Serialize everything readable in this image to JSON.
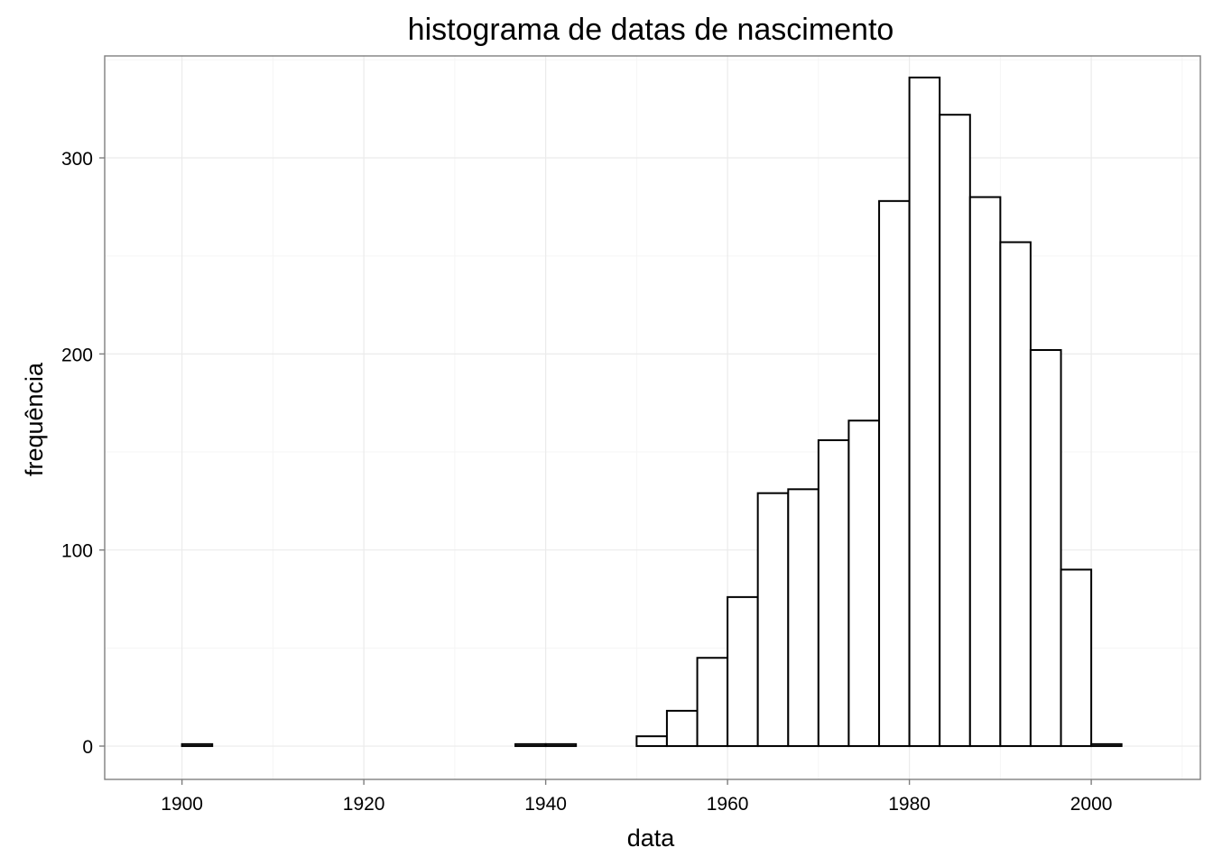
{
  "chart_data": {
    "type": "bar",
    "subtype": "histogram",
    "title": "histograma de datas de nascimento",
    "xlabel": "data",
    "ylabel": "frequência",
    "xlim": [
      1891.5,
      2012
    ],
    "ylim": [
      -17,
      352
    ],
    "x_ticks": [
      1900,
      1920,
      1940,
      1960,
      1980,
      2000
    ],
    "x_tick_labels": [
      "1900",
      "1920",
      "1940",
      "1960",
      "1980",
      "2000"
    ],
    "y_ticks": [
      0,
      100,
      200,
      300
    ],
    "y_tick_labels": [
      "0",
      "100",
      "200",
      "300"
    ],
    "grid": true,
    "bin_width": 3.33,
    "bins": [
      {
        "x0": 1896.67,
        "x1": 1900.0,
        "count": 0
      },
      {
        "x0": 1900.0,
        "x1": 1903.33,
        "count": 1
      },
      {
        "x0": 1903.33,
        "x1": 1906.67,
        "count": 0
      },
      {
        "x0": 1906.67,
        "x1": 1910.0,
        "count": 0
      },
      {
        "x0": 1910.0,
        "x1": 1913.33,
        "count": 0
      },
      {
        "x0": 1913.33,
        "x1": 1916.67,
        "count": 0
      },
      {
        "x0": 1916.67,
        "x1": 1920.0,
        "count": 0
      },
      {
        "x0": 1920.0,
        "x1": 1923.33,
        "count": 0
      },
      {
        "x0": 1923.33,
        "x1": 1926.67,
        "count": 0
      },
      {
        "x0": 1926.67,
        "x1": 1930.0,
        "count": 0
      },
      {
        "x0": 1930.0,
        "x1": 1933.33,
        "count": 0
      },
      {
        "x0": 1933.33,
        "x1": 1936.67,
        "count": 0
      },
      {
        "x0": 1936.67,
        "x1": 1940.0,
        "count": 1
      },
      {
        "x0": 1940.0,
        "x1": 1943.33,
        "count": 1
      },
      {
        "x0": 1943.33,
        "x1": 1946.67,
        "count": 0
      },
      {
        "x0": 1946.67,
        "x1": 1950.0,
        "count": 0
      },
      {
        "x0": 1950.0,
        "x1": 1953.33,
        "count": 5
      },
      {
        "x0": 1953.33,
        "x1": 1956.67,
        "count": 18
      },
      {
        "x0": 1956.67,
        "x1": 1960.0,
        "count": 45
      },
      {
        "x0": 1960.0,
        "x1": 1963.33,
        "count": 76
      },
      {
        "x0": 1963.33,
        "x1": 1966.67,
        "count": 129
      },
      {
        "x0": 1966.67,
        "x1": 1970.0,
        "count": 131
      },
      {
        "x0": 1970.0,
        "x1": 1973.33,
        "count": 156
      },
      {
        "x0": 1973.33,
        "x1": 1976.67,
        "count": 166
      },
      {
        "x0": 1976.67,
        "x1": 1980.0,
        "count": 278
      },
      {
        "x0": 1980.0,
        "x1": 1983.33,
        "count": 341
      },
      {
        "x0": 1983.33,
        "x1": 1986.67,
        "count": 322
      },
      {
        "x0": 1986.67,
        "x1": 1990.0,
        "count": 280
      },
      {
        "x0": 1990.0,
        "x1": 1993.33,
        "count": 257
      },
      {
        "x0": 1993.33,
        "x1": 1996.67,
        "count": 202
      },
      {
        "x0": 1996.67,
        "x1": 2000.0,
        "count": 90
      },
      {
        "x0": 2000.0,
        "x1": 2003.33,
        "count": 1
      },
      {
        "x0": 2003.33,
        "x1": 2006.67,
        "count": 0
      }
    ],
    "colors": {
      "bar_fill": "#ffffff",
      "bar_stroke": "#000000",
      "panel_border": "#7f7f7f",
      "grid_major": "#ebebeb",
      "grid_minor": "#f5f5f5",
      "tick": "#7f7f7f"
    }
  }
}
